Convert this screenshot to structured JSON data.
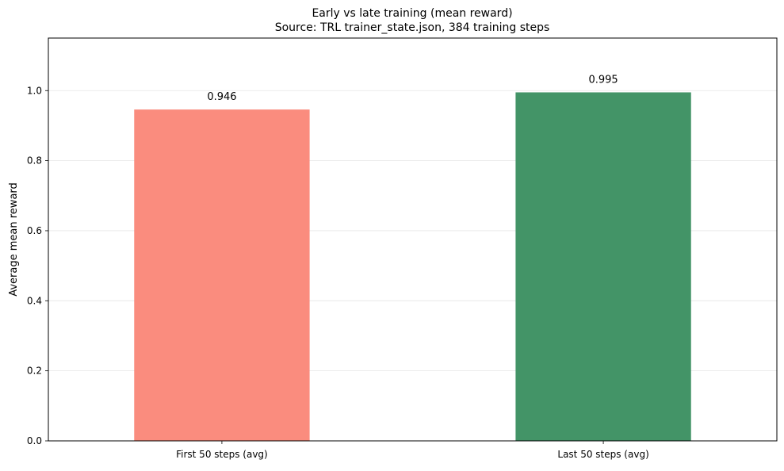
{
  "chart_data": {
    "type": "bar",
    "title": "Early vs late training (mean reward)",
    "subtitle": "Source: TRL trainer_state.json, 384 training steps",
    "xlabel": "",
    "ylabel": "Average mean reward",
    "categories": [
      "First 50 steps (avg)",
      "Last 50 steps (avg)"
    ],
    "values": [
      0.946,
      0.995
    ],
    "value_labels": [
      "0.946",
      "0.995"
    ],
    "colors": [
      "#fa8c7e",
      "#439467"
    ],
    "ylim": [
      0,
      1.15
    ],
    "yticks": [
      0.0,
      0.2,
      0.4,
      0.6,
      0.8,
      1.0
    ],
    "ytick_labels": [
      "0.0",
      "0.2",
      "0.4",
      "0.6",
      "0.8",
      "1.0"
    ],
    "grid": "y",
    "legend": "none"
  }
}
